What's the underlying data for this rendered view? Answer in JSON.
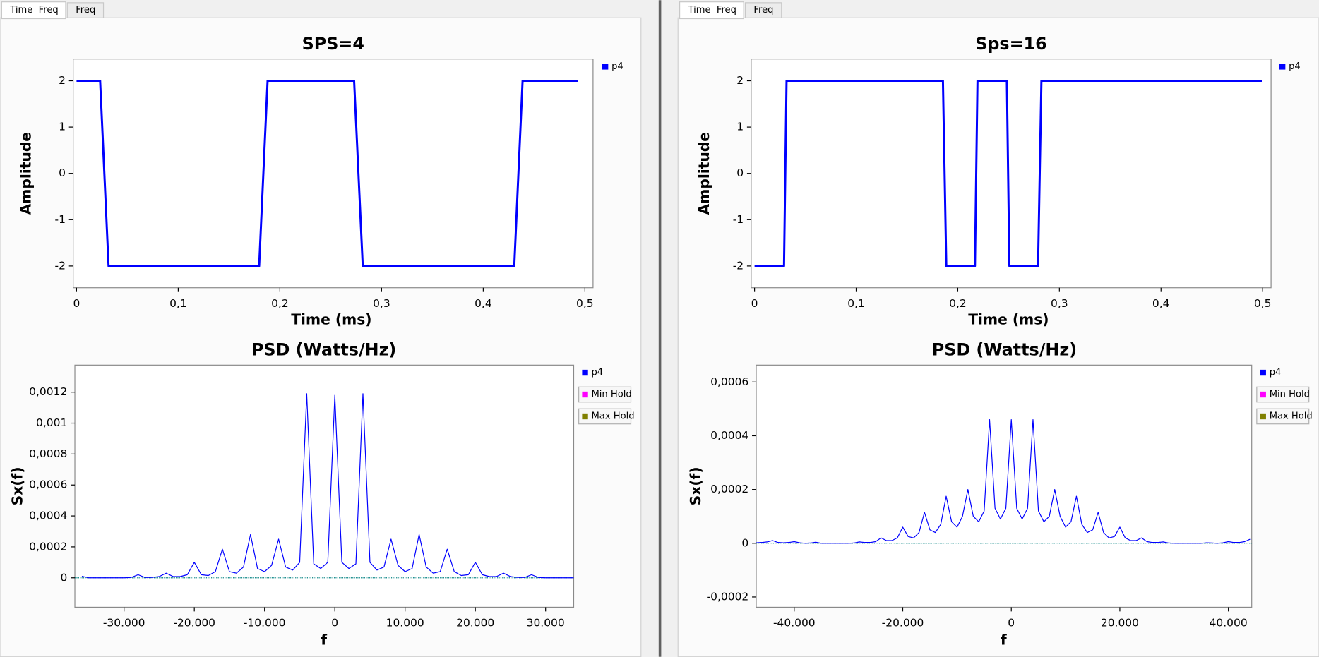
{
  "windows": [
    {
      "tabs": [
        "Time  Freq",
        "Freq"
      ]
    },
    {
      "tabs": [
        "Time  Freq",
        "Freq"
      ]
    }
  ],
  "chart_data": [
    {
      "type": "line",
      "title": "SPS=4",
      "x_label": "Time (ms)",
      "y_label": "Amplitude",
      "legend": "right",
      "x": [
        0,
        0.0232,
        0.0315,
        0.1796,
        0.1879,
        0.273,
        0.2815,
        0.4305,
        0.4387,
        0.4934
      ],
      "series": [
        {
          "name": "p4",
          "color": "#0000ff",
          "values": [
            2,
            2,
            -2,
            -2,
            2,
            2,
            -2,
            -2,
            2,
            2
          ]
        }
      ],
      "xlim": [
        -0.0033,
        0.508
      ],
      "ylim": [
        -2.47,
        2.47
      ],
      "xticks": [
        0,
        {
          "value": 0.1,
          "label": "0,1"
        },
        {
          "value": 0.2,
          "label": "0,2"
        },
        {
          "value": 0.3,
          "label": "0,3"
        },
        {
          "value": 0.4,
          "label": "0,4"
        },
        {
          "value": 0.5,
          "label": "0,5"
        }
      ],
      "yticks": [
        -2,
        -1,
        0,
        1,
        2
      ],
      "grid": false
    },
    {
      "type": "line",
      "title": "Sps=16",
      "x_label": "Time (ms)",
      "y_label": "Amplitude",
      "legend": "right",
      "x": [
        0,
        0.029,
        0.0315,
        0.1854,
        0.1887,
        0.2169,
        0.2194,
        0.2483,
        0.2508,
        0.279,
        0.2823,
        0.4992
      ],
      "series": [
        {
          "name": "p4",
          "color": "#0000ff",
          "values": [
            -2,
            -2,
            2,
            2,
            -2,
            -2,
            2,
            2,
            -2,
            -2,
            2,
            2
          ]
        }
      ],
      "xlim": [
        -0.0033,
        0.5083
      ],
      "ylim": [
        -2.47,
        2.47
      ],
      "xticks": [
        0,
        {
          "value": 0.1,
          "label": "0,1"
        },
        {
          "value": 0.2,
          "label": "0,2"
        },
        {
          "value": 0.3,
          "label": "0,3"
        },
        {
          "value": 0.4,
          "label": "0,4"
        },
        {
          "value": 0.5,
          "label": "0,5"
        }
      ],
      "yticks": [
        -2,
        -1,
        0,
        1,
        2
      ],
      "grid": false
    },
    {
      "type": "line",
      "title": "PSD (Watts/Hz)",
      "x_label": "f",
      "y_label": "Sx(f)",
      "legend": "right",
      "x": [
        -36000,
        -35000,
        -34000,
        -33000,
        -32000,
        -31000,
        -30000,
        -29000,
        -28000,
        -27000,
        -26000,
        -25000,
        -24000,
        -23000,
        -22000,
        -21000,
        -20000,
        -19000,
        -18000,
        -17000,
        -16000,
        -15000,
        -14000,
        -13000,
        -12000,
        -11000,
        -10000,
        -9000,
        -8000,
        -7000,
        -6000,
        -5000,
        -4000,
        -3000,
        -2000,
        -1000,
        0,
        1000,
        2000,
        3000,
        4000,
        5000,
        6000,
        7000,
        8000,
        9000,
        10000,
        11000,
        12000,
        13000,
        14000,
        15000,
        16000,
        17000,
        18000,
        19000,
        20000,
        21000,
        22000,
        23000,
        24000,
        25000,
        26000,
        27000,
        28000,
        29000,
        30000,
        31000,
        32000,
        33000,
        34000
      ],
      "series": [
        {
          "name": "p4",
          "color": "#0000ff",
          "values": [
            1e-05,
            0,
            0,
            0,
            0,
            0,
            0,
            2e-06,
            2e-05,
            2e-06,
            3e-06,
            8e-06,
            3e-05,
            8e-06,
            8e-06,
            2e-05,
            0.0001,
            2e-05,
            1.5e-05,
            4e-05,
            0.000185,
            4e-05,
            3e-05,
            7e-05,
            0.00028,
            6e-05,
            4e-05,
            8e-05,
            0.00025,
            7e-05,
            5e-05,
            0.0001,
            0.00119,
            9e-05,
            6e-05,
            0.0001,
            0.00118,
            0.0001,
            6e-05,
            9e-05,
            0.00119,
            0.0001,
            5e-05,
            7e-05,
            0.00025,
            8e-05,
            4e-05,
            6e-05,
            0.00028,
            7e-05,
            3e-05,
            4e-05,
            0.000185,
            4e-05,
            1.5e-05,
            2e-05,
            0.0001,
            2e-05,
            8e-06,
            8e-06,
            3e-05,
            8e-06,
            3e-06,
            2e-06,
            2e-05,
            2e-06,
            0,
            0,
            0,
            0,
            0
          ]
        }
      ],
      "hold_series": [
        {
          "name": "Min Hold",
          "color": "#ff00ff"
        },
        {
          "name": "Max Hold",
          "color": "#808000"
        }
      ],
      "xlim": [
        -37000,
        34000
      ],
      "ylim": [
        -0.00019,
        0.001375
      ],
      "xticks": [
        {
          "value": -30000,
          "label": "-30.000"
        },
        {
          "value": -20000,
          "label": "-20.000"
        },
        {
          "value": -10000,
          "label": "-10.000"
        },
        0,
        {
          "value": 10000,
          "label": "10.000"
        },
        {
          "value": 20000,
          "label": "20.000"
        },
        {
          "value": 30000,
          "label": "30.000"
        }
      ],
      "yticks": [
        0,
        {
          "value": 0.0002,
          "label": "0,0002"
        },
        {
          "value": 0.0004,
          "label": "0,0004"
        },
        {
          "value": 0.0006,
          "label": "0,0006"
        },
        {
          "value": 0.0008,
          "label": "0,0008"
        },
        {
          "value": 0.001,
          "label": "0,001"
        },
        {
          "value": 0.0012,
          "label": "0,0012"
        }
      ],
      "grid": false
    },
    {
      "type": "line",
      "title": "PSD (Watts/Hz)",
      "x_label": "f",
      "y_label": "Sx(f)",
      "legend": "right",
      "x": [
        -47000,
        -46000,
        -45000,
        -44000,
        -43000,
        -42000,
        -41000,
        -40000,
        -39000,
        -38000,
        -37000,
        -36000,
        -35000,
        -34000,
        -33000,
        -32000,
        -31000,
        -30000,
        -29000,
        -28000,
        -27000,
        -26000,
        -25000,
        -24000,
        -23000,
        -22000,
        -21000,
        -20000,
        -19000,
        -18000,
        -17000,
        -16000,
        -15000,
        -14000,
        -13000,
        -12000,
        -11000,
        -10000,
        -9000,
        -8000,
        -7000,
        -6000,
        -5000,
        -4000,
        -3000,
        -2000,
        -1000,
        0,
        1000,
        2000,
        3000,
        4000,
        5000,
        6000,
        7000,
        8000,
        9000,
        10000,
        11000,
        12000,
        13000,
        14000,
        15000,
        16000,
        17000,
        18000,
        19000,
        20000,
        21000,
        22000,
        23000,
        24000,
        25000,
        26000,
        27000,
        28000,
        29000,
        30000,
        31000,
        32000,
        33000,
        34000,
        35000,
        36000,
        37000,
        38000,
        39000,
        40000,
        41000,
        42000,
        43000,
        44000
      ],
      "series": [
        {
          "name": "p4",
          "color": "#0000ff",
          "values": [
            2e-06,
            3e-06,
            5e-06,
            1e-05,
            3e-06,
            2e-06,
            3e-06,
            6e-06,
            2e-06,
            0,
            1e-06,
            4e-06,
            0,
            0,
            0,
            0,
            0,
            0,
            1e-06,
            5e-06,
            3e-06,
            3e-06,
            6e-06,
            2e-05,
            1e-05,
            1e-05,
            2e-05,
            6e-05,
            2.5e-05,
            2e-05,
            4e-05,
            0.000115,
            5e-05,
            4e-05,
            7e-05,
            0.000175,
            8e-05,
            6e-05,
            0.0001,
            0.0002,
            0.0001,
            8e-05,
            0.00012,
            0.00046,
            0.00013,
            9e-05,
            0.00013,
            0.00046,
            0.00013,
            9e-05,
            0.00013,
            0.00046,
            0.00012,
            8e-05,
            0.0001,
            0.0002,
            0.0001,
            6e-05,
            8e-05,
            0.000175,
            7e-05,
            4e-05,
            5e-05,
            0.000115,
            4e-05,
            2e-05,
            2.5e-05,
            6e-05,
            2e-05,
            1e-05,
            1e-05,
            2e-05,
            6e-06,
            3e-06,
            3e-06,
            5e-06,
            1e-06,
            0,
            0,
            0,
            0,
            0,
            0,
            2e-06,
            1e-06,
            0,
            2e-06,
            6e-06,
            3e-06,
            3e-06,
            6e-06,
            1.5e-05
          ]
        }
      ],
      "hold_series": [
        {
          "name": "Min Hold",
          "color": "#ff00ff"
        },
        {
          "name": "Max Hold",
          "color": "#808000"
        }
      ],
      "xlim": [
        -47000,
        44300
      ],
      "ylim": [
        -0.000238,
        0.000663
      ],
      "xticks": [
        {
          "value": -40000,
          "label": "-40.000"
        },
        {
          "value": -20000,
          "label": "-20.000"
        },
        0,
        {
          "value": 20000,
          "label": "20.000"
        },
        {
          "value": 40000,
          "label": "40.000"
        }
      ],
      "yticks": [
        {
          "value": -0.0002,
          "label": "-0,0002"
        },
        0,
        {
          "value": 0.0002,
          "label": "0,0002"
        },
        {
          "value": 0.0004,
          "label": "0,0004"
        },
        {
          "value": 0.0006,
          "label": "0,0006"
        }
      ],
      "grid": false
    }
  ]
}
